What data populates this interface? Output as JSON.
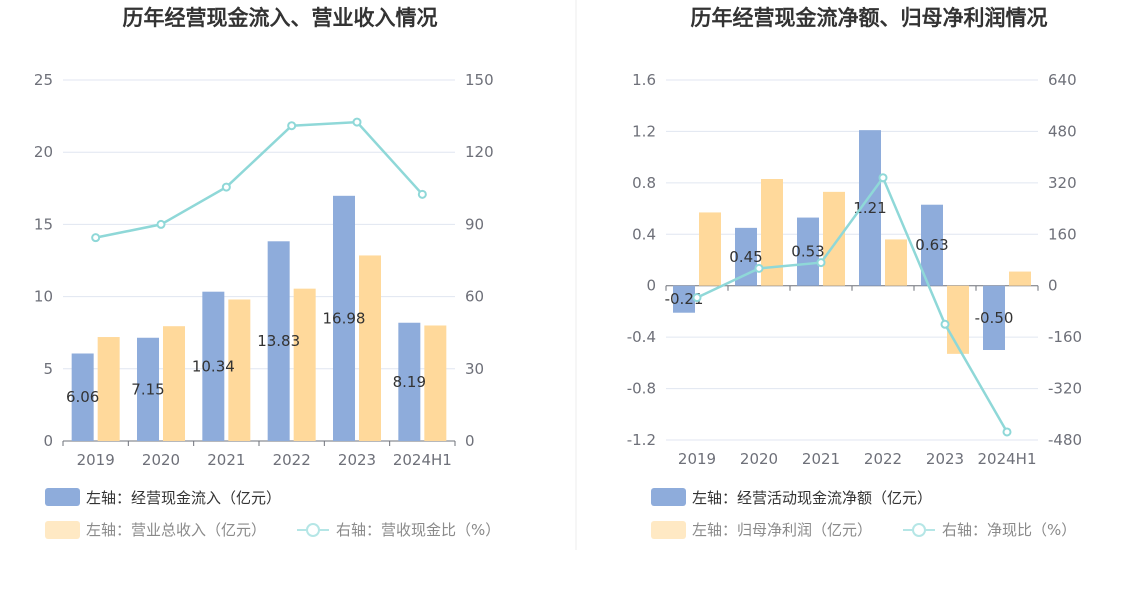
{
  "chart_data": [
    {
      "type": "bar",
      "title": "历年经营现金流入、营业收入情况",
      "categories": [
        "2019",
        "2020",
        "2021",
        "2022",
        "2023",
        "2024H1"
      ],
      "ylim_left": [
        0,
        25
      ],
      "yticks_left": [
        "0",
        "5",
        "10",
        "15",
        "20",
        "25"
      ],
      "ylim_right": [
        0,
        150
      ],
      "yticks_right": [
        "0",
        "30",
        "60",
        "90",
        "120",
        "150"
      ],
      "series": [
        {
          "name": "左轴：经营现金流入（亿元）",
          "axis": "left",
          "type": "bar",
          "color": "#8eacdb",
          "values": [
            6.06,
            7.15,
            10.34,
            13.83,
            16.98,
            8.19
          ],
          "labels": [
            "6.06",
            "7.15",
            "10.34",
            "13.83",
            "16.98",
            "8.19"
          ]
        },
        {
          "name": "左轴：营业总收入（亿元）",
          "axis": "left",
          "type": "bar",
          "color": "#ffd99b",
          "values": [
            7.2,
            7.95,
            9.8,
            10.55,
            12.85,
            8.0
          ]
        },
        {
          "name": "右轴：营收现金比（%）",
          "axis": "right",
          "type": "line",
          "color": "#8fd8d8",
          "values": [
            84.5,
            90,
            105.5,
            131,
            132.5,
            102.5
          ]
        }
      ],
      "grid": true
    },
    {
      "type": "bar",
      "title": "历年经营现金流净额、归母净利润情况",
      "categories": [
        "2019",
        "2020",
        "2021",
        "2022",
        "2023",
        "2024H1"
      ],
      "ylim_left": [
        -1.2,
        1.6
      ],
      "yticks_left": [
        "-1.2",
        "-0.8",
        "-0.4",
        "0",
        "0.4",
        "0.8",
        "1.2",
        "1.6"
      ],
      "ylim_right": [
        -480,
        640
      ],
      "yticks_right": [
        "-480",
        "-320",
        "-160",
        "0",
        "160",
        "320",
        "480",
        "640"
      ],
      "series": [
        {
          "name": "左轴：经营活动现金流净额（亿元）",
          "axis": "left",
          "type": "bar",
          "color": "#8eacdb",
          "values": [
            -0.21,
            0.45,
            0.53,
            1.21,
            0.63,
            -0.5
          ],
          "labels": [
            "-0.21",
            "0.45",
            "0.53",
            "1.21",
            "0.63",
            "-0.50"
          ]
        },
        {
          "name": "左轴：归母净利润（亿元）",
          "axis": "left",
          "type": "bar",
          "color": "#ffd99b",
          "values": [
            0.57,
            0.83,
            0.73,
            0.36,
            -0.53,
            0.11
          ]
        },
        {
          "name": "右轴：净现比（%）",
          "axis": "right",
          "type": "line",
          "color": "#8fd8d8",
          "values": [
            -37,
            54,
            72,
            336,
            -120,
            -455
          ]
        }
      ],
      "grid": true
    }
  ]
}
